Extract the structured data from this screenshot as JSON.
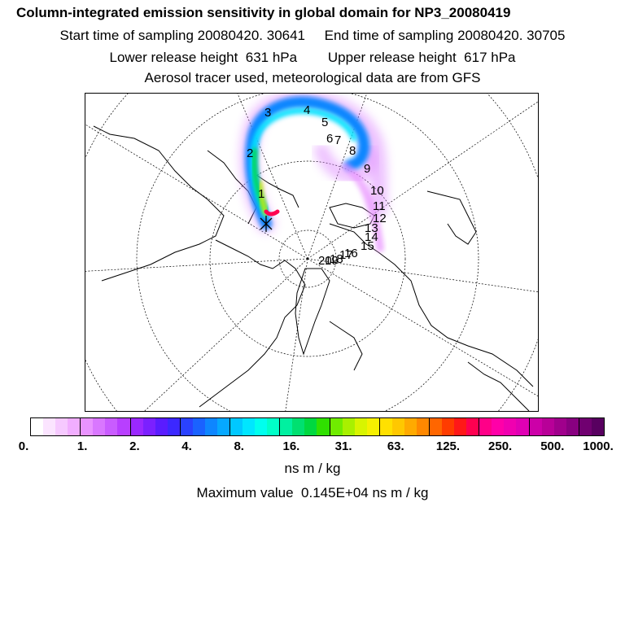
{
  "header": {
    "title": "Column-integrated emission sensitivity in global domain for NP3_20080419",
    "line2": "Start time of sampling 20080420. 30641     End time of sampling 20080420. 30705",
    "line3": "Lower release height  631 hPa        Upper release height  617 hPa",
    "line4": "Aerosol tracer used, meteorological data are from GFS"
  },
  "map": {
    "hour_labels": [
      "1",
      "2",
      "3",
      "4",
      "5",
      "6",
      "7",
      "8",
      "9",
      "10",
      "11",
      "12",
      "13",
      "14",
      "15",
      "16",
      "17",
      "18",
      "19",
      "20"
    ],
    "release_marker": "release-point-x"
  },
  "colorbar": {
    "colors": [
      "#ffffff",
      "#fbe4ff",
      "#f6c9ff",
      "#f1aeff",
      "#e993ff",
      "#d977ff",
      "#c95cff",
      "#b83fff",
      "#9a28ff",
      "#7b20ff",
      "#5a1cff",
      "#3c28ff",
      "#2a42ff",
      "#1a62ff",
      "#0e86ff",
      "#06a8ff",
      "#00c8ff",
      "#00e6ff",
      "#00ffee",
      "#00ffc8",
      "#00f0a0",
      "#00e070",
      "#00d840",
      "#30e000",
      "#70ec00",
      "#a8f000",
      "#d8f400",
      "#f6f000",
      "#ffe000",
      "#ffc800",
      "#ffaa00",
      "#ff8800",
      "#ff6600",
      "#ff3c00",
      "#ff1818",
      "#ff0050",
      "#ff0088",
      "#ff00a8",
      "#f000b0",
      "#e000b4",
      "#cc00a8",
      "#b80098",
      "#a0008c",
      "#880080",
      "#700070",
      "#580060"
    ],
    "tick_labels": [
      "0.",
      "1.",
      "2.",
      "4.",
      "8.",
      "16.",
      "31.",
      "63.",
      "125.",
      "250.",
      "500.",
      "1000."
    ],
    "units": "ns m / kg"
  },
  "footer": {
    "max_value": "Maximum value  0.145E+04 ns m / kg"
  }
}
